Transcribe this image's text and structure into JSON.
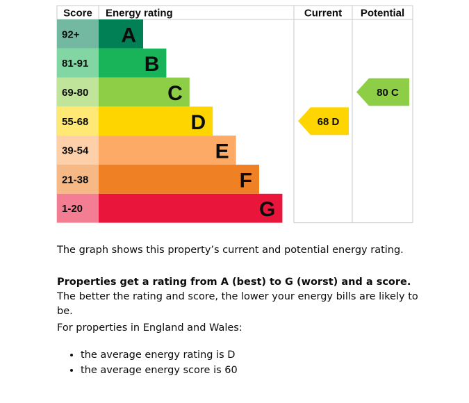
{
  "chart_data": {
    "type": "bar",
    "headers": {
      "score": "Score",
      "energy_rating": "Energy rating",
      "current": "Current",
      "potential": "Potential"
    },
    "bands": [
      {
        "letter": "A",
        "score_range": "92+",
        "color": "#008054"
      },
      {
        "letter": "B",
        "score_range": "81-91",
        "color": "#19b459"
      },
      {
        "letter": "C",
        "score_range": "69-80",
        "color": "#8dce46"
      },
      {
        "letter": "D",
        "score_range": "55-68",
        "color": "#ffd500"
      },
      {
        "letter": "E",
        "score_range": "39-54",
        "color": "#fcaa65"
      },
      {
        "letter": "F",
        "score_range": "21-38",
        "color": "#ef8023"
      },
      {
        "letter": "G",
        "score_range": "1-20",
        "color": "#e9153b"
      }
    ],
    "current": {
      "score": 68,
      "band": "D",
      "label": "68 D"
    },
    "potential": {
      "score": 80,
      "band": "C",
      "label": "80 C"
    }
  },
  "text": {
    "graph_description": "The graph shows this property’s current and potential energy rating.",
    "rating_intro_bold": "Properties get a rating from A (best) to G (worst) and a score.",
    "rating_intro_rest": " The better the rating and score, the lower your energy bills are likely to be.",
    "region_intro": "For properties in England and Wales:",
    "bullets": [
      "the average energy rating is D",
      "the average energy score is 60"
    ]
  }
}
